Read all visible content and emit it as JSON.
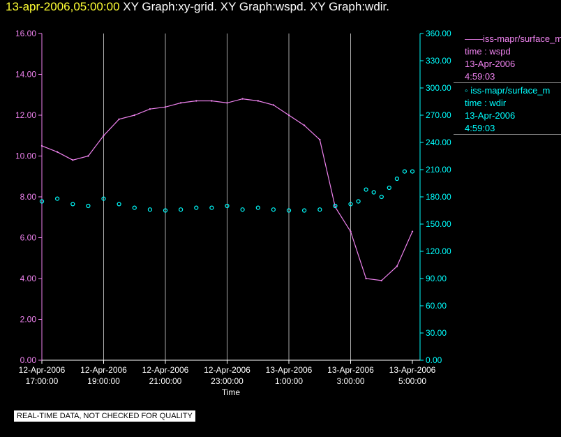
{
  "header": {
    "timestamp": "13-apr-2006,05:00:00",
    "title": "XY Graph:xy-grid.  XY Graph:wspd.  XY Graph:wdir."
  },
  "legend": [
    {
      "line1": "iss-mapr/surface_m",
      "line2": "time : wspd",
      "line3": "13-Apr-2006",
      "line4": "4:59:03",
      "color": "#ee82ee"
    },
    {
      "line1": "iss-mapr/surface_m",
      "line2": "time : wdir",
      "line3": "13-Apr-2006",
      "line4": "4:59:03",
      "color": "#00ffff"
    }
  ],
  "disclaimer": "REAL-TIME DATA, NOT CHECKED FOR QUALITY",
  "colors": {
    "wspd": "#ee82ee",
    "wdir": "#00ffff",
    "grid": "#a9a9a9",
    "background": "#000000"
  },
  "chart_data": {
    "type": "line",
    "xlabel": "Time",
    "x_ticks": [
      [
        "12-Apr-2006",
        "17:00:00"
      ],
      [
        "12-Apr-2006",
        "19:00:00"
      ],
      [
        "12-Apr-2006",
        "21:00:00"
      ],
      [
        "12-Apr-2006",
        "23:00:00"
      ],
      [
        "13-Apr-2006",
        "1:00:00"
      ],
      [
        "13-Apr-2006",
        "3:00:00"
      ],
      [
        "13-Apr-2006",
        "5:00:00"
      ]
    ],
    "y_left": {
      "range": [
        0,
        16
      ],
      "ticks": [
        "0.00",
        "2.00",
        "4.00",
        "6.00",
        "8.00",
        "10.00",
        "12.00",
        "14.00",
        "16.00"
      ]
    },
    "y_right": {
      "range": [
        0,
        360
      ],
      "ticks": [
        "0.00",
        "30.00",
        "60.00",
        "90.00",
        "120.00",
        "150.00",
        "180.00",
        "210.00",
        "240.00",
        "270.00",
        "300.00",
        "330.00",
        "360.00"
      ]
    },
    "grid": true,
    "series": [
      {
        "key": "wspd",
        "axis": "left",
        "style": "line",
        "x": [
          "12-Apr-2006 17:00",
          "12-Apr-2006 17:30",
          "12-Apr-2006 18:00",
          "12-Apr-2006 18:30",
          "12-Apr-2006 19:00",
          "12-Apr-2006 19:30",
          "12-Apr-2006 20:00",
          "12-Apr-2006 20:30",
          "12-Apr-2006 21:00",
          "12-Apr-2006 21:30",
          "12-Apr-2006 22:00",
          "12-Apr-2006 22:30",
          "12-Apr-2006 23:00",
          "12-Apr-2006 23:30",
          "13-Apr-2006 0:00",
          "13-Apr-2006 0:30",
          "13-Apr-2006 1:00",
          "13-Apr-2006 1:30",
          "13-Apr-2006 2:00",
          "13-Apr-2006 2:30",
          "13-Apr-2006 3:00",
          "13-Apr-2006 3:30",
          "13-Apr-2006 4:00",
          "13-Apr-2006 4:30",
          "13-Apr-2006 5:00"
        ],
        "values": [
          10.5,
          10.2,
          9.8,
          10.0,
          11.0,
          11.8,
          12.0,
          12.3,
          12.4,
          12.6,
          12.7,
          12.7,
          12.6,
          12.8,
          12.7,
          12.5,
          12.0,
          11.5,
          10.8,
          7.5,
          6.3,
          4.0,
          3.9,
          4.6,
          6.3
        ]
      },
      {
        "key": "wdir",
        "axis": "right",
        "style": "scatter",
        "x": [
          "12-Apr-2006 17:00",
          "12-Apr-2006 17:30",
          "12-Apr-2006 18:00",
          "12-Apr-2006 18:30",
          "12-Apr-2006 19:00",
          "12-Apr-2006 19:30",
          "12-Apr-2006 20:00",
          "12-Apr-2006 20:30",
          "12-Apr-2006 21:00",
          "12-Apr-2006 21:30",
          "12-Apr-2006 22:00",
          "12-Apr-2006 22:30",
          "12-Apr-2006 23:00",
          "12-Apr-2006 23:30",
          "13-Apr-2006 0:00",
          "13-Apr-2006 0:30",
          "13-Apr-2006 1:00",
          "13-Apr-2006 1:30",
          "13-Apr-2006 2:00",
          "13-Apr-2006 2:30",
          "13-Apr-2006 3:00",
          "13-Apr-2006 3:15",
          "13-Apr-2006 3:30",
          "13-Apr-2006 3:45",
          "13-Apr-2006 4:00",
          "13-Apr-2006 4:15",
          "13-Apr-2006 4:30",
          "13-Apr-2006 4:45",
          "13-Apr-2006 5:00"
        ],
        "values": [
          175,
          178,
          172,
          170,
          178,
          172,
          168,
          166,
          165,
          166,
          168,
          168,
          170,
          166,
          168,
          166,
          165,
          165,
          166,
          170,
          172,
          175,
          188,
          185,
          180,
          190,
          200,
          208,
          208
        ]
      }
    ]
  }
}
